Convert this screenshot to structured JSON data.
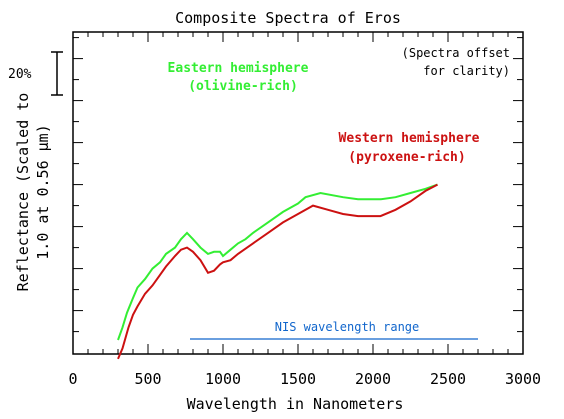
{
  "chart_data": {
    "type": "line",
    "title": "Composite Spectra of Eros",
    "xlabel": "Wavelength in Nanometers",
    "ylabel_line1": "Reflectance (Scaled to",
    "ylabel_line2": "1.0 at 0.56 μm)",
    "xlim": [
      0,
      3000
    ],
    "x_ticks": [
      "0",
      "500",
      "1000",
      "1500",
      "2000",
      "2500",
      "3000"
    ],
    "x_tick_values": [
      0,
      500,
      1000,
      1500,
      2000,
      2500,
      3000
    ],
    "scale_bar_label": "20%",
    "note_line1": "(Spectra offset",
    "note_line2": "for clarity)",
    "range_label": "NIS wavelength range",
    "range": [
      780,
      2700
    ],
    "series": [
      {
        "name_line1": "Eastern    hemisphere",
        "name_line2": "(olivine-rich)",
        "color": "#33ee33",
        "x": [
          300,
          330,
          360,
          400,
          430,
          480,
          530,
          580,
          620,
          680,
          720,
          760,
          800,
          850,
          900,
          940,
          980,
          1000,
          1050,
          1100,
          1150,
          1200,
          1300,
          1400,
          1500,
          1550,
          1650,
          1800,
          1900,
          2050,
          2150,
          2250,
          2350,
          2430
        ],
        "y": [
          0.0,
          0.06,
          0.13,
          0.2,
          0.25,
          0.29,
          0.34,
          0.37,
          0.41,
          0.44,
          0.48,
          0.51,
          0.48,
          0.44,
          0.41,
          0.42,
          0.42,
          0.4,
          0.43,
          0.46,
          0.48,
          0.51,
          0.56,
          0.61,
          0.65,
          0.68,
          0.7,
          0.68,
          0.67,
          0.67,
          0.68,
          0.7,
          0.72,
          0.74
        ]
      },
      {
        "name_line1": "Western    hemisphere",
        "name_line2": "(pyroxene-rich)",
        "color": "#cc1111",
        "x": [
          300,
          330,
          370,
          400,
          430,
          480,
          530,
          580,
          620,
          680,
          720,
          760,
          800,
          850,
          900,
          940,
          980,
          1000,
          1050,
          1100,
          1200,
          1300,
          1400,
          1500,
          1600,
          1700,
          1800,
          1900,
          2050,
          2150,
          2250,
          2350,
          2430
        ],
        "y": [
          -0.09,
          -0.04,
          0.06,
          0.12,
          0.16,
          0.22,
          0.26,
          0.31,
          0.35,
          0.4,
          0.43,
          0.44,
          0.42,
          0.38,
          0.32,
          0.33,
          0.36,
          0.37,
          0.38,
          0.41,
          0.46,
          0.51,
          0.56,
          0.6,
          0.64,
          0.62,
          0.6,
          0.59,
          0.59,
          0.62,
          0.66,
          0.71,
          0.74
        ]
      }
    ]
  }
}
